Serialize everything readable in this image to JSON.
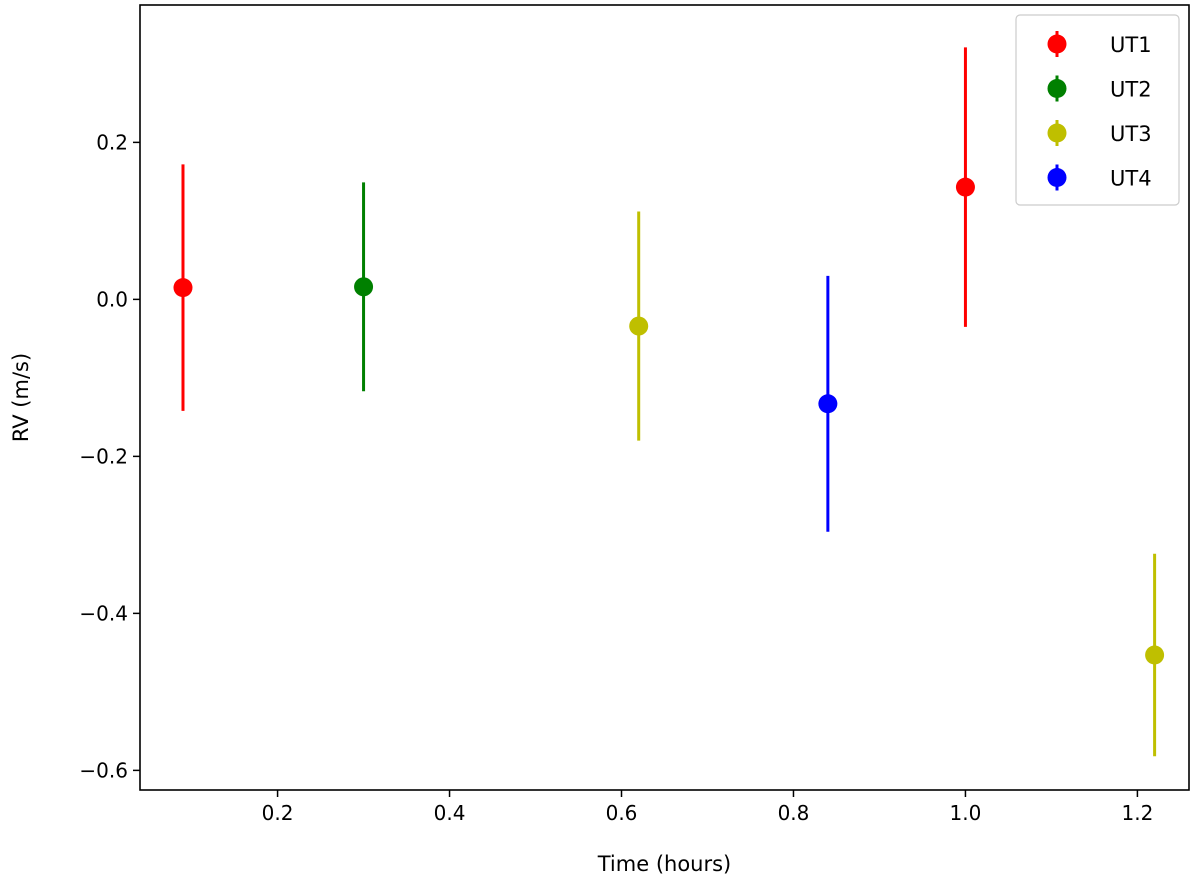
{
  "chart_data": {
    "type": "scatter",
    "xlabel": "Time (hours)",
    "ylabel": "RV (m/s)",
    "xlim": [
      0.04,
      1.26
    ],
    "ylim": [
      -0.625,
      0.375
    ],
    "x_ticks": [
      0.2,
      0.4,
      0.6,
      0.8,
      1.0,
      1.2
    ],
    "x_tick_labels": [
      "0.2",
      "0.4",
      "0.6",
      "0.8",
      "1.0",
      "1.2"
    ],
    "y_ticks": [
      0.2,
      0.0,
      -0.2,
      -0.4,
      -0.6
    ],
    "y_tick_labels": [
      "0.2",
      "0.0",
      "−0.2",
      "−0.4",
      "−0.6"
    ],
    "grid": false,
    "legend_position": "top-right",
    "series": [
      {
        "name": "UT1",
        "color": "#ff0000",
        "points": [
          {
            "x": 0.09,
            "y": 0.015,
            "err": 0.157
          },
          {
            "x": 1.0,
            "y": 0.143,
            "err": 0.178
          }
        ]
      },
      {
        "name": "UT2",
        "color": "#008000",
        "points": [
          {
            "x": 0.3,
            "y": 0.016,
            "err": 0.133
          }
        ]
      },
      {
        "name": "UT3",
        "color": "#bfbf00",
        "points": [
          {
            "x": 0.62,
            "y": -0.034,
            "err": 0.146
          },
          {
            "x": 1.22,
            "y": -0.453,
            "err": 0.129
          }
        ]
      },
      {
        "name": "UT4",
        "color": "#0000ff",
        "points": [
          {
            "x": 0.84,
            "y": -0.133,
            "err": 0.163
          }
        ]
      }
    ]
  }
}
